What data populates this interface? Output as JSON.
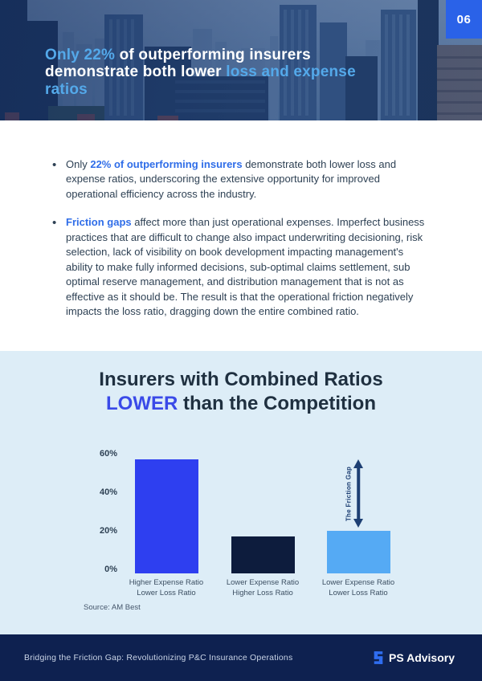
{
  "page_number": "06",
  "hero": {
    "heading": {
      "part1_highlight": "Only 22%",
      "part2": " of outperforming insurers demonstrate both lower ",
      "part3_highlight": "loss and expense ratios"
    }
  },
  "bullets": {
    "item1": {
      "pre": "Only ",
      "highlight": "22% of outperforming insurers",
      "rest": " demonstrate both lower loss and expense ratios, underscoring the extensive opportunity for improved operational efficiency across the industry."
    },
    "item2": {
      "highlight": "Friction gaps",
      "rest": " affect more than just operational expenses. Imperfect business practices that are difficult to change also impact underwriting decisioning, risk selection, lack of visibility on book development impacting management's ability to make fully informed decisions, sub-optimal claims settlement, sub optimal reserve management, and distribution management that is not as effective as it should be. The result is that the operational friction negatively impacts the loss ratio, dragging down the entire combined ratio."
    }
  },
  "chart_data": {
    "type": "bar",
    "title": {
      "line1": "Insurers with Combined Ratios",
      "line2_highlight": "LOWER",
      "line2_rest": " than the Competition"
    },
    "categories": [
      {
        "line1": "Higher Expense Ratio",
        "line2": "Lower Loss Ratio"
      },
      {
        "line1": "Lower Expense Ratio",
        "line2": "Higher Loss Ratio"
      },
      {
        "line1": "Lower Expense Ratio",
        "line2": "Lower Loss Ratio"
      }
    ],
    "values": [
      59,
      19,
      22
    ],
    "unit": "%",
    "ylim": [
      0,
      60
    ],
    "yticks": [
      {
        "label": "60%",
        "value": 60
      },
      {
        "label": "40%",
        "value": 40
      },
      {
        "label": "20%",
        "value": 20
      },
      {
        "label": "0%",
        "value": 0
      }
    ],
    "bar_colors": [
      "#2e3ff0",
      "#0d1c3d",
      "#55aaf4"
    ],
    "annotation": "The Friction Gap",
    "source": "Source: AM Best",
    "grid": false,
    "legend": false
  },
  "footer": {
    "text": "Bridging the Friction Gap: Revolutionizing P&C Insurance Operations",
    "brand": "PS Advisory"
  },
  "colors": {
    "accent_blue": "#2f6de8",
    "light_blue_heading": "#54a9ea",
    "title_blue": "#3a4ae8",
    "navy_footer": "#0e2150",
    "chart_background": "#ddedf7",
    "page_number_blue": "#2a62e8",
    "arrow_navy": "#1d3f73"
  }
}
